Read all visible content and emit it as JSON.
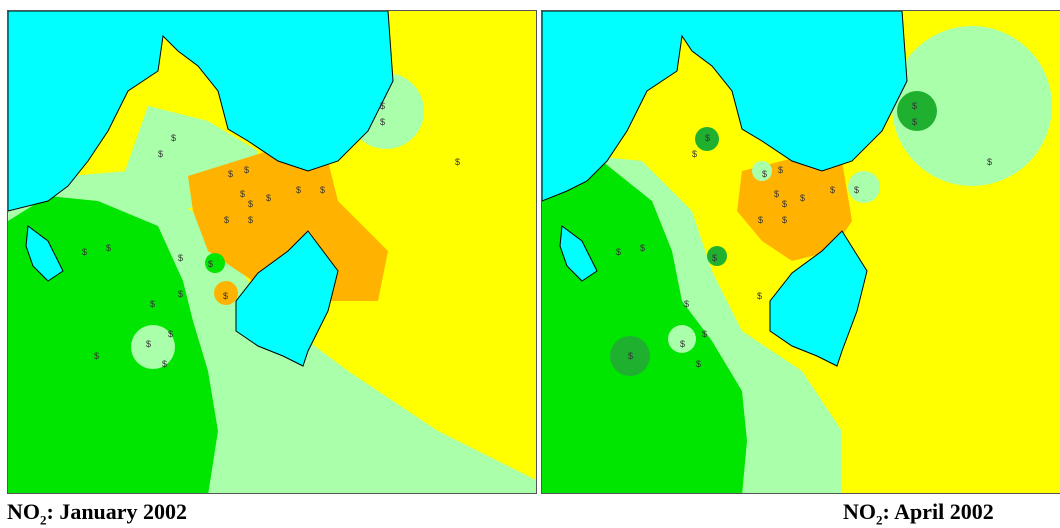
{
  "colors": {
    "water": "#00ffff",
    "low_concentration": "#00e600",
    "low_mid_concentration": "#aaffaa",
    "mid_concentration": "#ffff00",
    "high_concentration": "#ffb200",
    "very_low_spot": "#20b030",
    "coastline": "#000000"
  },
  "panels": [
    {
      "caption": {
        "pollutant": "NO",
        "subscript": "2",
        "period": ": January 2002"
      },
      "station_symbol": "$"
    },
    {
      "caption": {
        "pollutant": "NO",
        "subscript": "2",
        "period": ": April 2002"
      },
      "station_symbol": "$"
    }
  ]
}
